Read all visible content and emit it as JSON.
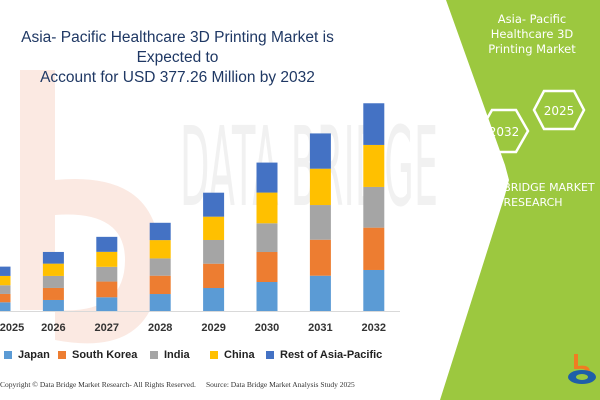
{
  "title": [
    "Asia- Pacific Healthcare 3D Printing Market is Expected to",
    "Account for USD 377.26 Million by 2032"
  ],
  "watermark": "DATA BRIDGE",
  "chart_data": {
    "type": "bar",
    "stacked": true,
    "categories": [
      "2025",
      "2026",
      "2027",
      "2028",
      "2029",
      "2030",
      "2031",
      "2032"
    ],
    "series": [
      {
        "name": "Japan",
        "color": "#5b9bd5",
        "values": [
          15.8,
          20.0,
          24.9,
          30.8,
          41.7,
          52.6,
          64.0,
          74.4
        ]
      },
      {
        "name": "South Korea",
        "color": "#ed7d31",
        "values": [
          15.1,
          21.8,
          28.5,
          33.2,
          44.1,
          54.4,
          65.3,
          76.8
        ]
      },
      {
        "name": "India",
        "color": "#a5a5a5",
        "values": [
          15.8,
          21.8,
          26.7,
          31.4,
          43.0,
          52.1,
          62.9,
          73.8
        ]
      },
      {
        "name": "China",
        "color": "#ffc000",
        "values": [
          16.9,
          22.3,
          27.2,
          33.2,
          42.3,
          55.7,
          65.9,
          76.2
        ]
      },
      {
        "name": "Rest of Asia-Pacific",
        "color": "#4472c4",
        "values": [
          16.9,
          21.2,
          27.2,
          31.4,
          43.5,
          54.4,
          64.0,
          75.6
        ]
      }
    ],
    "ylim": [
      0,
      380
    ],
    "grid": false,
    "legend_position": "bottom"
  },
  "footer": {
    "copyright": "Copyright © Data Bridge Market Research- All Rights Reserved.",
    "source": "Source: Data Bridge Market Analysis Study 2025"
  },
  "side_panel": {
    "color": "#9cc83f",
    "heading": [
      "Asia- Pacific Healthcare 3D",
      "Printing Market"
    ],
    "hex_years": [
      "2032",
      "2025"
    ],
    "brand": [
      "DATA BRIDGE MARKET",
      "RESEARCH"
    ]
  }
}
